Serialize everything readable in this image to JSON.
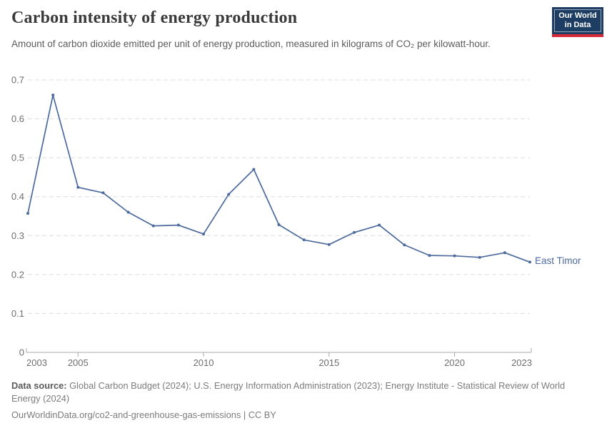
{
  "header": {
    "title": "Carbon intensity of energy production",
    "subtitle": "Amount of carbon dioxide emitted per unit of energy production, measured in kilograms of CO₂ per kilowatt-hour.",
    "logo": {
      "line1": "Our World",
      "line2": "in Data"
    }
  },
  "chart_data": {
    "type": "line",
    "title": "Carbon intensity of energy production",
    "xlabel": "",
    "ylabel": "",
    "x": [
      2003,
      2004,
      2005,
      2006,
      2007,
      2008,
      2009,
      2010,
      2011,
      2012,
      2013,
      2014,
      2015,
      2016,
      2017,
      2018,
      2019,
      2020,
      2021,
      2022,
      2023
    ],
    "series": [
      {
        "name": "East Timor",
        "values": [
          0.357,
          0.661,
          0.424,
          0.41,
          0.36,
          0.325,
          0.327,
          0.304,
          0.406,
          0.47,
          0.328,
          0.289,
          0.277,
          0.308,
          0.327,
          0.276,
          0.249,
          0.248,
          0.244,
          0.256,
          0.232
        ]
      }
    ],
    "xlim": [
      2003,
      2023
    ],
    "ylim": [
      0,
      0.7
    ],
    "xticks": [
      {
        "year": 2003,
        "label": "2003"
      },
      {
        "year": 2005,
        "label": "2005"
      },
      {
        "year": 2010,
        "label": "2010"
      },
      {
        "year": 2015,
        "label": "2015"
      },
      {
        "year": 2020,
        "label": "2020"
      },
      {
        "year": 2023,
        "label": "2023"
      }
    ],
    "yticks": [
      {
        "value": 0.0,
        "label": "0"
      },
      {
        "value": 0.1,
        "label": "0.1"
      },
      {
        "value": 0.2,
        "label": "0.2"
      },
      {
        "value": 0.3,
        "label": "0.3"
      },
      {
        "value": 0.4,
        "label": "0.4"
      },
      {
        "value": 0.5,
        "label": "0.5"
      },
      {
        "value": 0.6,
        "label": "0.6"
      },
      {
        "value": 0.7,
        "label": "0.7"
      }
    ],
    "grid": "horizontal-dashed",
    "legend": "line-end-label"
  },
  "colors": {
    "line": "#4c6a9c",
    "entity_label": "#4c6a9c",
    "gridline": "#dddddd",
    "axis": "#a8a8a8",
    "tick_label": "#6e6e6e",
    "logo_bg": "#1d3d63",
    "logo_red": "#d92a3a"
  },
  "footer": {
    "data_source_label": "Data source:",
    "data_source_text": " Global Carbon Budget (2024); U.S. Energy Information Administration (2023); Energy Institute - Statistical Review of World Energy (2024)",
    "link_line": "OurWorldinData.org/co2-and-greenhouse-gas-emissions | CC BY"
  }
}
